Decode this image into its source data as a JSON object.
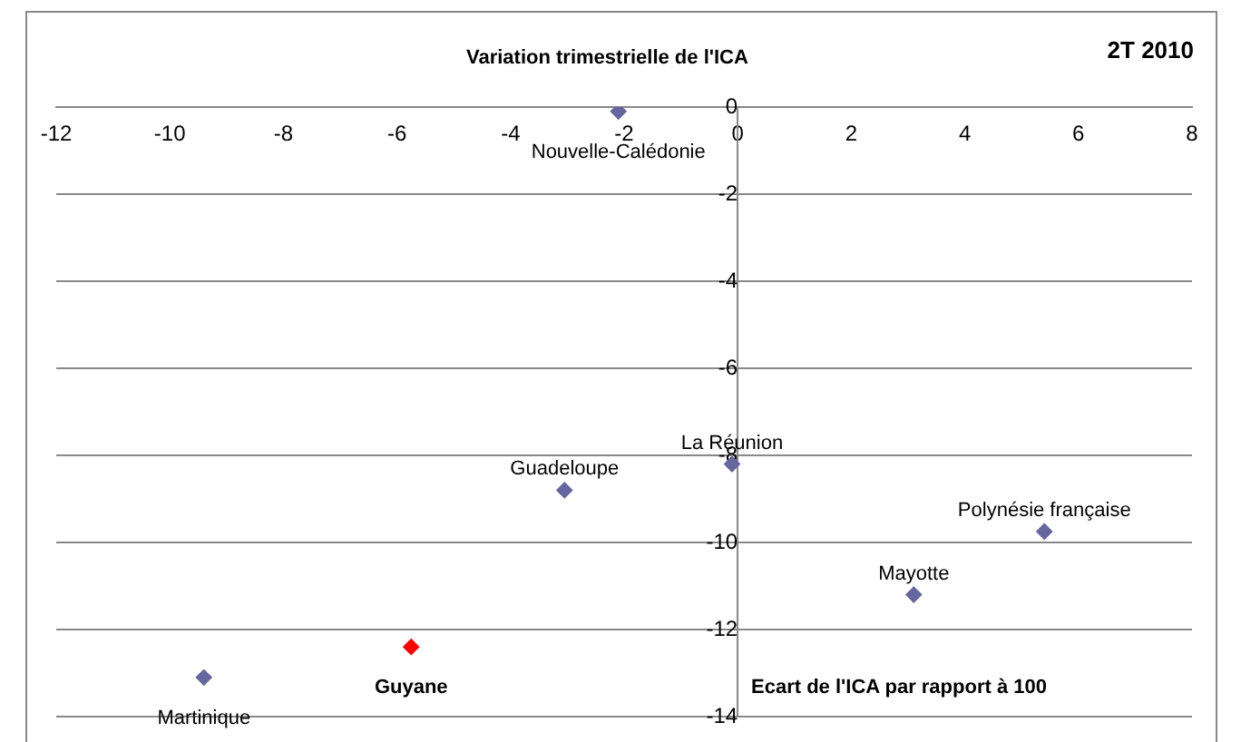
{
  "chart_data": {
    "type": "scatter",
    "title": "2T 2010",
    "xlabel": "Ecart de l'ICA par rapport à 100",
    "ylabel": "Variation trimestrielle de l'ICA",
    "x": [
      -2.1,
      -0.1,
      -3.05,
      5.4,
      3.1,
      -5.75,
      -9.4
    ],
    "values": [
      -0.1,
      -8.2,
      -8.8,
      -9.75,
      -11.2,
      -12.4,
      -13.1
    ],
    "colors": [
      "#6666a0",
      "#6666a0",
      "#6666a0",
      "#6666a0",
      "#6666a0",
      "#ff0000",
      "#6666a0"
    ],
    "annotations": [
      {
        "text": "Nouvelle-Calédonie",
        "x": -2.1,
        "y": -0.1
      },
      {
        "text": "La Réunion",
        "x": -0.1,
        "y": -8.2
      },
      {
        "text": "Guadeloupe",
        "x": -3.05,
        "y": -8.8
      },
      {
        "text": "Polynésie française",
        "x": 5.4,
        "y": -9.75
      },
      {
        "text": "Mayotte",
        "x": 3.1,
        "y": -11.2
      },
      {
        "text": "Guyane",
        "x": -5.75,
        "y": -12.4
      },
      {
        "text": "Martinique",
        "x": -9.4,
        "y": -13.1
      }
    ],
    "xlim": [
      -12,
      8
    ],
    "xticks": [
      -12,
      -10,
      -8,
      -6,
      -4,
      -2,
      0,
      2,
      4,
      6,
      8
    ],
    "ylim": [
      -14,
      0
    ],
    "yticks": [
      -14,
      -12,
      -10,
      -8,
      -6,
      -4,
      -2,
      0
    ],
    "grid": "y",
    "marker": "diamond",
    "legend": false
  }
}
